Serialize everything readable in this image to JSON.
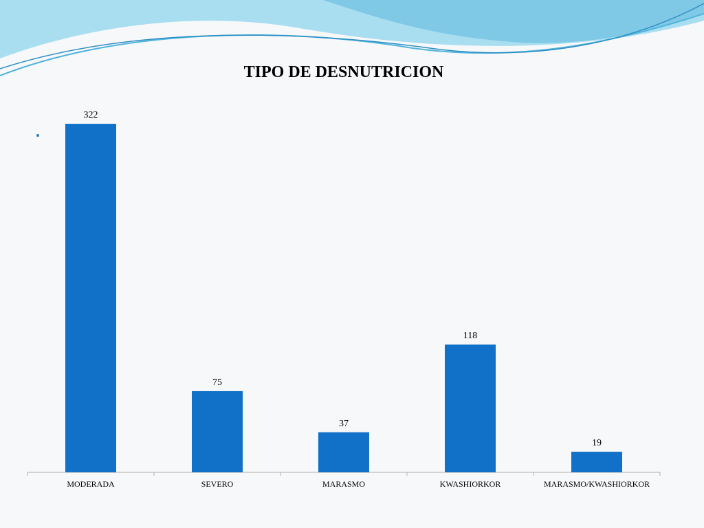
{
  "slide": {
    "wave_colors": [
      "#7fc8e6",
      "#4fb3dc",
      "#a9def0",
      "#2f8fc4"
    ],
    "bullet_color": "#2a7fb8"
  },
  "chart_data": {
    "type": "bar",
    "title": "TIPO DE DESNUTRICION",
    "categories": [
      "MODERADA",
      "SEVERO",
      "MARASMO",
      "KWASHIORKOR",
      "MARASMO/KWASHIORKOR"
    ],
    "values": [
      322,
      75,
      37,
      118,
      19
    ],
    "data_labels": [
      "322",
      "75",
      "37",
      "118",
      "19"
    ],
    "xlabel": "",
    "ylabel": "",
    "ylim": [
      0,
      350
    ],
    "grid": false,
    "legend": "none",
    "bar_color": "#1170c8",
    "axis_color": "#b0b0b0"
  }
}
